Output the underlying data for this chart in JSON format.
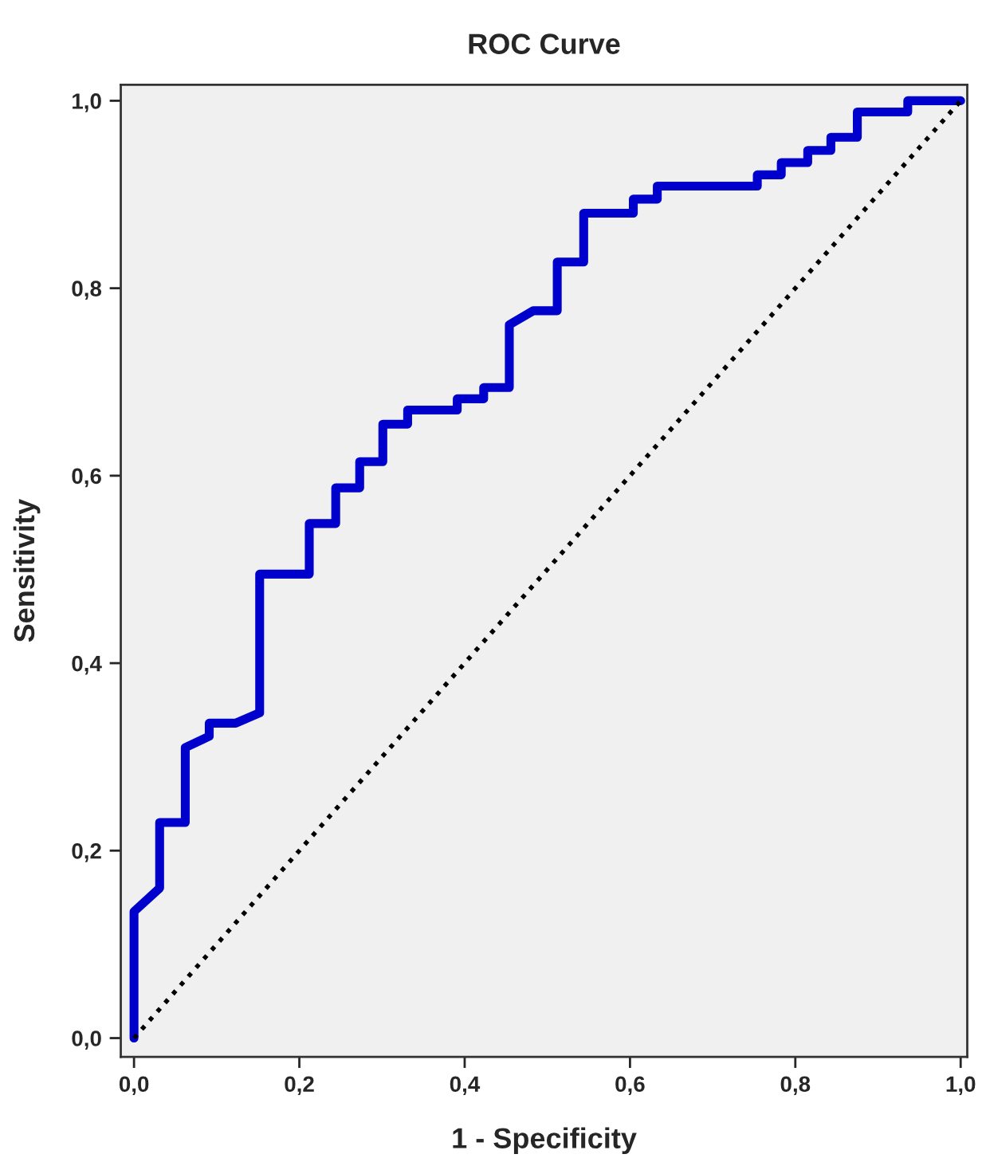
{
  "chart_data": {
    "type": "line",
    "title": "ROC Curve",
    "xlabel": "1 - Specificity",
    "ylabel": "Sensitivity",
    "xlim": [
      -0.016,
      1.008
    ],
    "ylim": [
      -0.02,
      1.017
    ],
    "xticks": [
      {
        "value": 0,
        "label": "0,0"
      },
      {
        "value": 0.2,
        "label": "0,2"
      },
      {
        "value": 0.4,
        "label": "0,4"
      },
      {
        "value": 0.6,
        "label": "0,6"
      },
      {
        "value": 0.8,
        "label": "0,8"
      },
      {
        "value": 1,
        "label": "1,0"
      }
    ],
    "yticks": [
      {
        "value": 0,
        "label": "0,0"
      },
      {
        "value": 0.2,
        "label": "0,2"
      },
      {
        "value": 0.4,
        "label": "0,4"
      },
      {
        "value": 0.6,
        "label": "0,6"
      },
      {
        "value": 0.8,
        "label": "0,8"
      },
      {
        "value": 1,
        "label": "1,0"
      }
    ],
    "grid": false,
    "marker": "none",
    "series": [
      {
        "color": "#0000cc",
        "line_style": "solid",
        "x": [
          0,
          0,
          0.031,
          0.031,
          0.062,
          0.062,
          0.091,
          0.091,
          0.123,
          0.152,
          0.152,
          0.212,
          0.212,
          0.244,
          0.244,
          0.273,
          0.273,
          0.301,
          0.301,
          0.331,
          0.331,
          0.391,
          0.391,
          0.423,
          0.423,
          0.454,
          0.454,
          0.483,
          0.512,
          0.512,
          0.544,
          0.544,
          0.604,
          0.604,
          0.633,
          0.633,
          0.754,
          0.754,
          0.783,
          0.783,
          0.815,
          0.815,
          0.843,
          0.843,
          0.875,
          0.875,
          0.936,
          0.936,
          1.0
        ],
        "values": [
          0,
          0.135,
          0.16,
          0.23,
          0.23,
          0.31,
          0.322,
          0.336,
          0.336,
          0.347,
          0.495,
          0.495,
          0.549,
          0.549,
          0.587,
          0.587,
          0.615,
          0.615,
          0.655,
          0.655,
          0.67,
          0.67,
          0.682,
          0.682,
          0.694,
          0.694,
          0.761,
          0.776,
          0.776,
          0.828,
          0.828,
          0.88,
          0.88,
          0.895,
          0.895,
          0.909,
          0.909,
          0.921,
          0.921,
          0.934,
          0.934,
          0.947,
          0.947,
          0.961,
          0.961,
          0.988,
          0.988,
          1.0,
          1.0
        ]
      },
      {
        "color": "#000000",
        "line_style": "dotted",
        "x": [
          0,
          1
        ],
        "values": [
          0,
          1
        ]
      }
    ]
  }
}
